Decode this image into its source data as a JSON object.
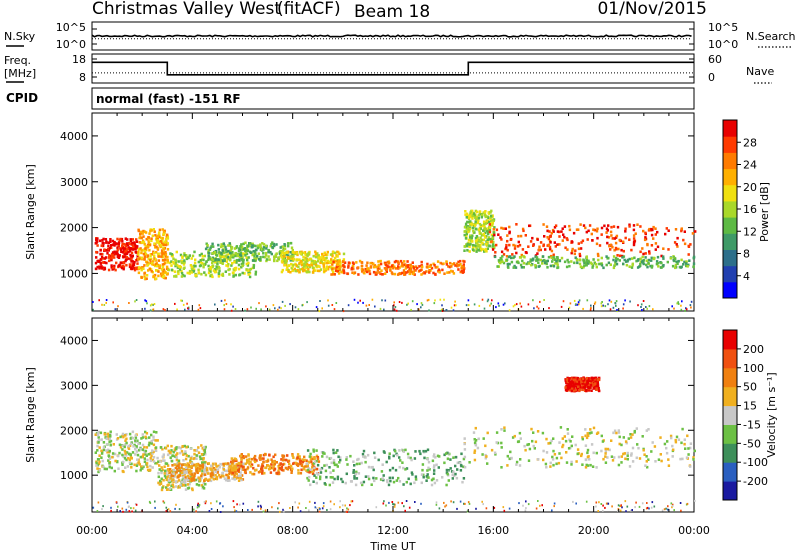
{
  "header": {
    "radar": "Christmas Valley West",
    "mode": "(fitACF)",
    "beam": "Beam 18",
    "date": "01/Nov/2015"
  },
  "strip": {
    "nsky_label": "N.Sky",
    "nsky_ticks": [
      "10^5",
      "10^0"
    ],
    "nsearch_label": "N.Search",
    "nsearch_ticks": [
      "10^5",
      "10^0"
    ],
    "freq_label": [
      "Freq.",
      "[MHz]"
    ],
    "freq_ticks": [
      "18",
      "8"
    ],
    "nave_label": "Nave",
    "nave_ticks": [
      "60",
      "0"
    ],
    "cpid_label": "CPID",
    "cpid_text": "normal (fast) -151 RF"
  },
  "chart_data": [
    {
      "type": "line",
      "name": "nsky-nsearch-strip",
      "x": [
        "00:00",
        "03:00",
        "15:00",
        "24:00"
      ],
      "xlim": [
        "00:00",
        "24:00"
      ],
      "series": [
        {
          "name": "N.Sky",
          "values": [
            1000,
            1000,
            1000,
            1000
          ]
        },
        {
          "name": "N.Search",
          "values": [
            200,
            200,
            200,
            200
          ]
        }
      ],
      "yscale": "log",
      "ylim": [
        1,
        100000
      ]
    },
    {
      "type": "line",
      "name": "frequency-nave-strip",
      "x": [
        "00:00",
        "03:00",
        "03:00",
        "15:00",
        "15:00",
        "24:00"
      ],
      "xlim": [
        "00:00",
        "24:00"
      ],
      "series": [
        {
          "name": "Freq.",
          "values": [
            16.5,
            16.5,
            10.8,
            10.8,
            16.5,
            16.5
          ]
        },
        {
          "name": "Nave",
          "values": [
            22,
            22,
            22,
            22,
            22,
            22
          ]
        }
      ],
      "ylim": [
        8,
        18
      ],
      "y2lim": [
        0,
        60
      ]
    },
    {
      "type": "heatmap",
      "name": "power-panel",
      "xlabel": "Time UT",
      "ylabel": "Slant Range [km]",
      "xlim": [
        0,
        24
      ],
      "ylim": [
        180,
        4500
      ],
      "xticks": [
        "00:00",
        "04:00",
        "08:00",
        "12:00",
        "16:00",
        "20:00",
        "00:00"
      ],
      "yticks": [
        1000,
        2000,
        3000,
        4000
      ],
      "colorbar_label": "Power [dB]",
      "colorbar_ticks": [
        4,
        8,
        12,
        16,
        20,
        24,
        28
      ],
      "colorbar_colors": [
        "#0000ff",
        "#2140b0",
        "#2d6f8a",
        "#3e9a67",
        "#5dba44",
        "#a9d82a",
        "#f0e010",
        "#ffb000",
        "#ff7b00",
        "#ff3a00",
        "#e80000"
      ],
      "regions": [
        {
          "t0": 0.1,
          "t1": 1.8,
          "r0": 1100,
          "r1": 1800,
          "level": 10
        },
        {
          "t0": 1.8,
          "t1": 3.0,
          "r0": 900,
          "r1": 2000,
          "level": 7
        },
        {
          "t0": 3.0,
          "t1": 6.5,
          "r0": 950,
          "r1": 1500,
          "level": 5
        },
        {
          "t0": 4.5,
          "t1": 8.0,
          "r0": 1300,
          "r1": 1700,
          "level": 4
        },
        {
          "t0": 7.5,
          "t1": 10.0,
          "r0": 1050,
          "r1": 1500,
          "level": 6
        },
        {
          "t0": 9.5,
          "t1": 14.8,
          "r0": 1000,
          "r1": 1300,
          "level": 8
        },
        {
          "t0": 14.8,
          "t1": 16.0,
          "r0": 1500,
          "r1": 2400,
          "level": 5
        },
        {
          "t0": 15.8,
          "t1": 24.0,
          "r0": 1400,
          "r1": 2100,
          "level": 9
        },
        {
          "t0": 16.0,
          "t1": 24.0,
          "r0": 1150,
          "r1": 1400,
          "level": 4
        }
      ]
    },
    {
      "type": "heatmap",
      "name": "velocity-panel",
      "xlabel": "Time UT",
      "ylabel": "Slant Range [km]",
      "xlim": [
        0,
        24
      ],
      "ylim": [
        180,
        4500
      ],
      "xticks": [
        "00:00",
        "04:00",
        "08:00",
        "12:00",
        "16:00",
        "20:00",
        "00:00"
      ],
      "yticks": [
        1000,
        2000,
        3000,
        4000
      ],
      "colorbar_label": "Velocity [m s⁻¹]",
      "colorbar_ticks": [
        200,
        100,
        50,
        15,
        -15,
        -50,
        -100,
        -200
      ],
      "colorbar_colors": [
        "#1a1aa0",
        "#2a5fc0",
        "#3d8f5a",
        "#6cc044",
        "#c8c8c8",
        "#f0b020",
        "#f08010",
        "#f05010",
        "#e80000"
      ],
      "regions": [
        {
          "t0": 0.1,
          "t1": 2.6,
          "r0": 1100,
          "r1": 2000,
          "level": 4
        },
        {
          "t0": 2.6,
          "t1": 4.5,
          "r0": 700,
          "r1": 1700,
          "level": 4
        },
        {
          "t0": 3.0,
          "t1": 6.0,
          "r0": 900,
          "r1": 1300,
          "level": 5
        },
        {
          "t0": 5.5,
          "t1": 9.0,
          "r0": 1050,
          "r1": 1500,
          "level": 6
        },
        {
          "t0": 8.5,
          "t1": 14.8,
          "r0": 800,
          "r1": 1600,
          "level": 3
        },
        {
          "t0": 14.8,
          "t1": 24.0,
          "r0": 1200,
          "r1": 2100,
          "level": 4
        },
        {
          "t0": 18.8,
          "t1": 20.2,
          "r0": 2900,
          "r1": 3200,
          "level": 8
        }
      ]
    }
  ]
}
